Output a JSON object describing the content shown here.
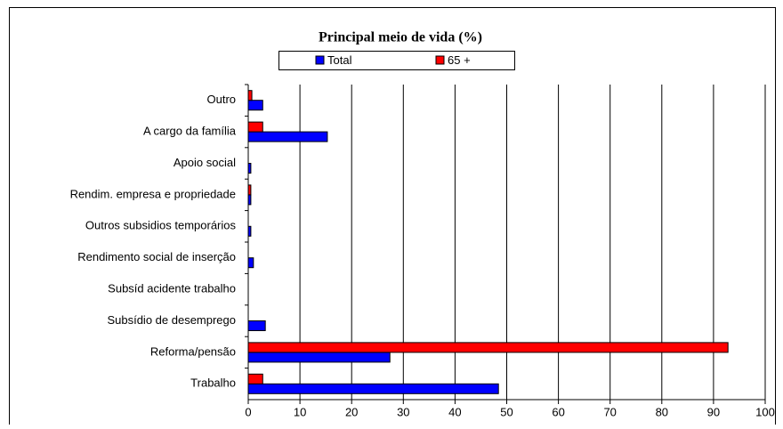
{
  "chart_data": {
    "type": "bar",
    "orientation": "horizontal",
    "title": "Principal meio de vida (%)",
    "categories": [
      "Trabalho",
      "Reforma/pensão",
      "Subsídio de desemprego",
      "Subsíd acidente trabalho",
      "Rendimento social de inserção",
      "Outros subsidios temporários",
      "Rendim. empresa e propriedade",
      "Apoio social",
      "A cargo da família",
      "Outro"
    ],
    "series": [
      {
        "name": "Total",
        "color": "#0000ff",
        "values": [
          48.4,
          27.4,
          3.3,
          0,
          1.0,
          0.5,
          0.5,
          0.5,
          15.3,
          2.8
        ]
      },
      {
        "name": "65 +",
        "color": "#ff0000",
        "values": [
          2.8,
          92.8,
          0,
          0,
          0,
          0,
          0.5,
          0,
          2.8,
          0.7
        ]
      }
    ],
    "xlim": [
      0,
      100
    ],
    "xticks": [
      0,
      10,
      20,
      30,
      40,
      50,
      60,
      70,
      80,
      90,
      100
    ],
    "grid": true,
    "legend": "top"
  }
}
